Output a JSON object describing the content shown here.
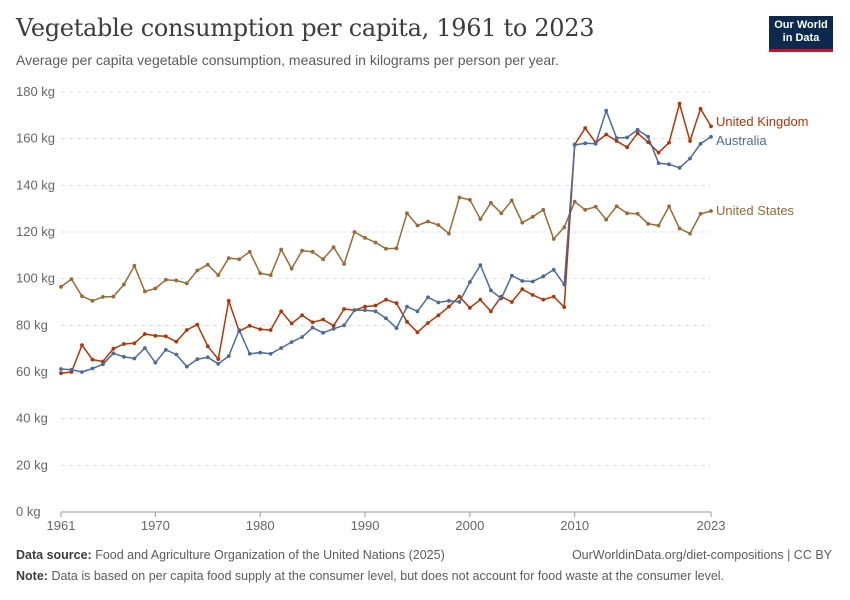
{
  "header": {
    "title": "Vegetable consumption per capita, 1961 to 2023",
    "subtitle": "Average per capita vegetable consumption, measured in kilograms per person per year.",
    "logo_line1": "Our World",
    "logo_line2": "in Data"
  },
  "footer": {
    "source_label": "Data source:",
    "source_text": "Food and Agriculture Organization of the United Nations (2025)",
    "link": "OurWorldinData.org/diet-compositions | CC BY",
    "note_label": "Note:",
    "note_text": "Data is based on per capita food supply at the consumer level, but does not account for food waste at the consumer level."
  },
  "chart_data": {
    "type": "line",
    "title": "Vegetable consumption per capita, 1961 to 2023",
    "subtitle": "Average per capita vegetable consumption, measured in kilograms per person per year.",
    "xlim": [
      1961,
      2023
    ],
    "ylim": [
      0,
      180
    ],
    "x_ticks": [
      1961,
      1970,
      1980,
      1990,
      2000,
      2010,
      2023
    ],
    "y_ticks": [
      0,
      20,
      40,
      60,
      80,
      100,
      120,
      140,
      160,
      180
    ],
    "y_unit": " kg",
    "grid": "horizontal dashed",
    "legend": "labels at line ends (right)",
    "x": [
      1961,
      1962,
      1963,
      1964,
      1965,
      1966,
      1967,
      1968,
      1969,
      1970,
      1971,
      1972,
      1973,
      1974,
      1975,
      1976,
      1977,
      1978,
      1979,
      1980,
      1981,
      1982,
      1983,
      1984,
      1985,
      1986,
      1987,
      1988,
      1989,
      1990,
      1991,
      1992,
      1993,
      1994,
      1995,
      1996,
      1997,
      1998,
      1999,
      2000,
      2001,
      2002,
      2003,
      2004,
      2005,
      2006,
      2007,
      2008,
      2009,
      2010,
      2011,
      2012,
      2013,
      2014,
      2015,
      2016,
      2017,
      2018,
      2019,
      2020,
      2021,
      2022,
      2023
    ],
    "series": [
      {
        "name": "United States",
        "color": "#9a6a35",
        "values": [
          96.5,
          99.8,
          92.5,
          90.5,
          92.2,
          92.3,
          97.5,
          105.5,
          94.5,
          95.8,
          99.5,
          99.2,
          98.0,
          103.5,
          106.0,
          101.5,
          108.8,
          108.3,
          111.5,
          102.3,
          101.5,
          112.5,
          104.3,
          112.0,
          111.5,
          108.3,
          113.5,
          106.3,
          120.0,
          117.5,
          115.5,
          112.8,
          113.0,
          128.0,
          122.8,
          124.5,
          123.0,
          119.3,
          134.8,
          133.8,
          125.5,
          132.5,
          128.0,
          133.5,
          124.0,
          126.5,
          129.5,
          117.0,
          122.0,
          133.0,
          129.5,
          130.8,
          125.3,
          131.0,
          128.0,
          127.8,
          123.5,
          122.8,
          131.0,
          121.5,
          119.3,
          127.8,
          129.0
        ]
      },
      {
        "name": "United Kingdom",
        "color": "#b13507",
        "values": [
          59.5,
          60.0,
          71.5,
          65.3,
          64.5,
          70.0,
          72.0,
          72.3,
          76.3,
          75.5,
          75.3,
          73.0,
          78.0,
          80.3,
          71.0,
          65.5,
          90.5,
          77.5,
          79.8,
          78.3,
          78.0,
          86.0,
          80.8,
          84.3,
          81.3,
          82.5,
          79.8,
          87.0,
          86.5,
          88.0,
          88.5,
          91.0,
          89.5,
          81.5,
          77.0,
          81.0,
          84.3,
          88.0,
          92.3,
          87.5,
          91.0,
          86.0,
          92.3,
          90.0,
          95.5,
          93.0,
          91.0,
          92.3,
          87.8,
          157.5,
          164.5,
          158.3,
          161.8,
          159.0,
          156.3,
          162.3,
          158.5,
          154.0,
          158.3,
          175.0,
          159.0,
          172.8,
          165.3
        ]
      },
      {
        "name": "Australia",
        "color": "#4c6a9c",
        "values": [
          61.3,
          61.0,
          60.0,
          61.5,
          63.3,
          68.0,
          66.5,
          65.8,
          70.3,
          64.0,
          69.5,
          67.5,
          62.3,
          65.5,
          66.3,
          63.5,
          66.8,
          78.0,
          67.8,
          68.3,
          67.8,
          70.3,
          72.8,
          75.0,
          79.0,
          76.8,
          78.5,
          80.0,
          86.5,
          86.5,
          86.0,
          83.0,
          78.8,
          88.0,
          86.0,
          92.0,
          89.8,
          90.5,
          90.0,
          98.5,
          105.8,
          95.0,
          91.5,
          101.3,
          99.0,
          98.8,
          101.0,
          103.8,
          97.5,
          157.3,
          158.0,
          157.8,
          172.0,
          160.3,
          160.5,
          163.8,
          160.8,
          149.5,
          149.0,
          147.5,
          151.5,
          157.8,
          160.8
        ]
      }
    ]
  }
}
